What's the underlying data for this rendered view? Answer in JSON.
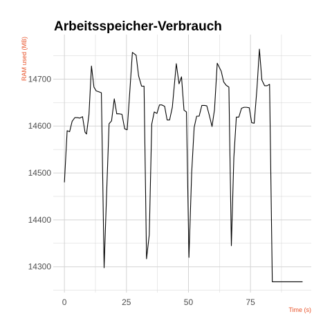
{
  "chart_data": {
    "type": "line",
    "title": "Arbeitsspeicher-Verbrauch",
    "xlabel": "Time (s)",
    "ylabel": "RAM used (MB)",
    "xlim": [
      -4.5,
      99.5
    ],
    "ylim": [
      14245,
      14795
    ],
    "xticks": [
      0,
      25,
      50,
      75
    ],
    "yticks": [
      14300,
      14400,
      14500,
      14600,
      14700
    ],
    "grid": true,
    "colors": {
      "line": "#000000",
      "axis_label": "#e8532a",
      "grid": "#d3d3d3",
      "tick_label": "#4d4d4d"
    },
    "series": [
      {
        "x": [
          0,
          1.1,
          2.1,
          3.1,
          4.2,
          5.2,
          6.2,
          7.3,
          8.3,
          8.9,
          9.9,
          10.9,
          11.9,
          12.8,
          13.9,
          14.9,
          16,
          17,
          18,
          19,
          20.1,
          21.1,
          22.1,
          23.2,
          24.3,
          25.3,
          26.4,
          27.4,
          28.9,
          29.9,
          31.1,
          32.1,
          33.1,
          34.2,
          35.2,
          36.2,
          37.3,
          38.3,
          39.3,
          40.4,
          41.4,
          42.4,
          43.5,
          45.1,
          46.2,
          47.2,
          48.2,
          49.2,
          50.2,
          51.3,
          52.3,
          53.3,
          54.3,
          55.4,
          56.5,
          57.4,
          58.4,
          59.5,
          60.5,
          61.6,
          63.2,
          64.2,
          65.2,
          66.3,
          67.3,
          68.3,
          69.3,
          70.3,
          71.4,
          72.4,
          73.4,
          74.5,
          75.5,
          76.5,
          77.6,
          78.6,
          79.6,
          80.7,
          81.7,
          82.7,
          83.8,
          84.8,
          85.8,
          86.8,
          87.8,
          88.8,
          89.8,
          90.8,
          92.2,
          92.9,
          94.5,
          96
        ],
        "y": [
          14480,
          14590,
          14588,
          14610,
          14618,
          14618,
          14617,
          14620,
          14587,
          14583,
          14625,
          14728,
          14683,
          14675,
          14673,
          14671,
          14298,
          14455,
          14605,
          14611,
          14658,
          14626,
          14626,
          14625,
          14594,
          14592,
          14677,
          14757,
          14751,
          14707,
          14685,
          14685,
          14317,
          14368,
          14604,
          14630,
          14627,
          14645,
          14645,
          14642,
          14613,
          14613,
          14640,
          14733,
          14690,
          14705,
          14634,
          14630,
          14320,
          14501,
          14597,
          14621,
          14621,
          14644,
          14644,
          14643,
          14623,
          14599,
          14635,
          14734,
          14717,
          14694,
          14687,
          14683,
          14345,
          14533,
          14619,
          14619,
          14638,
          14640,
          14640,
          14639,
          14607,
          14606,
          14679,
          14764,
          14698,
          14686,
          14686,
          14689,
          14268,
          14268,
          14268,
          14268,
          14268,
          14268,
          14268,
          14268,
          14268,
          14268,
          14268,
          14268
        ]
      }
    ]
  }
}
